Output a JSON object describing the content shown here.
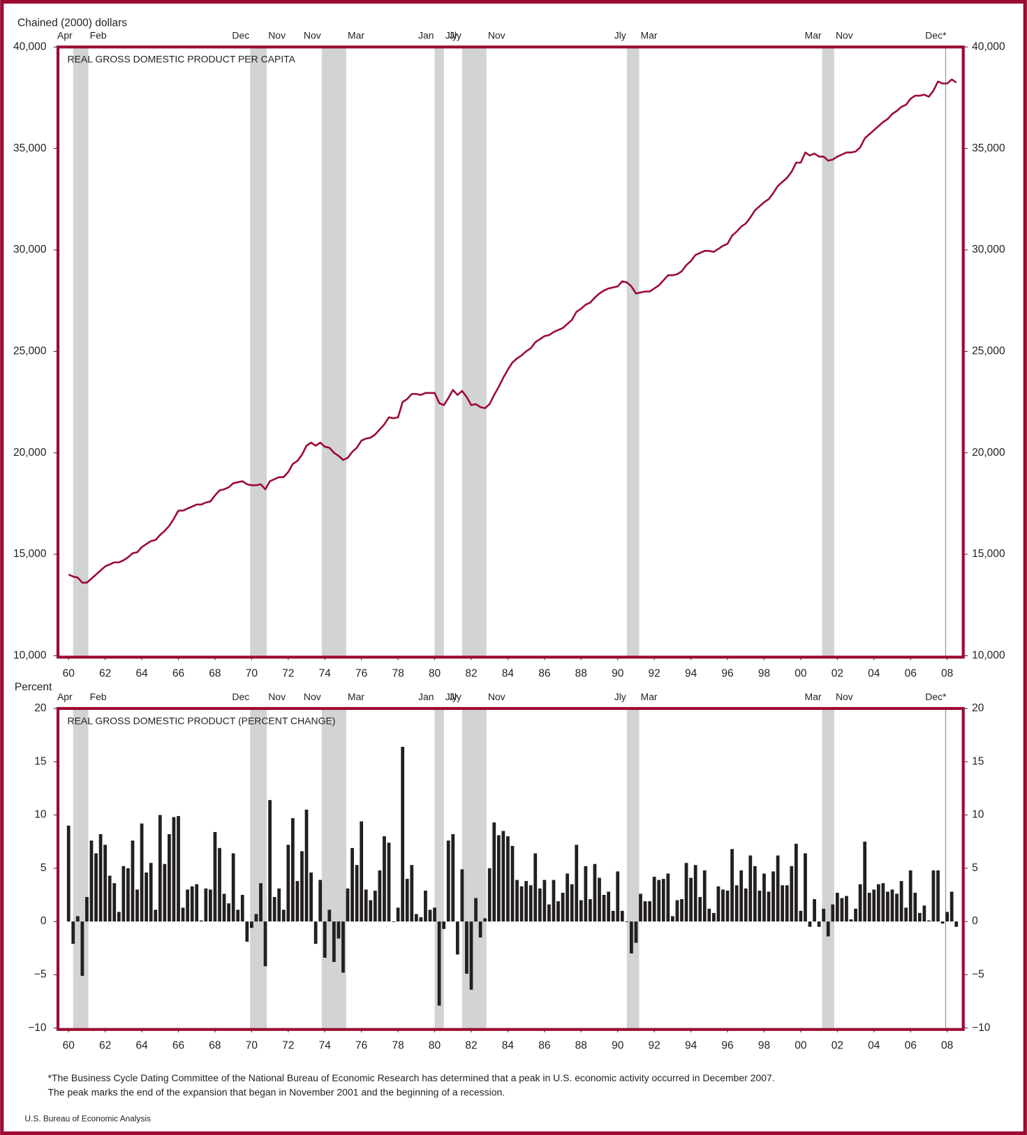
{
  "chart_data": [
    {
      "type": "line",
      "title": "REAL GROSS DOMESTIC PRODUCT PER CAPITA",
      "y_label": "Chained (2000) dollars",
      "color": "#9b0a32",
      "x": [
        1960,
        1960.25,
        1960.5,
        1960.75,
        1961,
        1961.25,
        1961.5,
        1961.75,
        1962,
        1962.25,
        1962.5,
        1962.75,
        1963,
        1963.25,
        1963.5,
        1963.75,
        1964,
        1964.25,
        1964.5,
        1964.75,
        1965,
        1965.25,
        1965.5,
        1965.75,
        1966,
        1966.25,
        1966.5,
        1966.75,
        1967,
        1967.25,
        1967.5,
        1967.75,
        1968,
        1968.25,
        1968.5,
        1968.75,
        1969,
        1969.25,
        1969.5,
        1969.75,
        1970,
        1970.25,
        1970.5,
        1970.75,
        1971,
        1971.25,
        1971.5,
        1971.75,
        1972,
        1972.25,
        1972.5,
        1972.75,
        1973,
        1973.25,
        1973.5,
        1973.75,
        1974,
        1974.25,
        1974.5,
        1974.75,
        1975,
        1975.25,
        1975.5,
        1975.75,
        1976,
        1976.25,
        1976.5,
        1976.75,
        1977,
        1977.25,
        1977.5,
        1977.75,
        1978,
        1978.25,
        1978.5,
        1978.75,
        1979,
        1979.25,
        1979.5,
        1979.75,
        1980,
        1980.25,
        1980.5,
        1980.75,
        1981,
        1981.25,
        1981.5,
        1981.75,
        1982,
        1982.25,
        1982.5,
        1982.75,
        1983,
        1983.25,
        1983.5,
        1983.75,
        1984,
        1984.25,
        1984.5,
        1984.75,
        1985,
        1985.25,
        1985.5,
        1985.75,
        1986,
        1986.25,
        1986.5,
        1986.75,
        1987,
        1987.25,
        1987.5,
        1987.75,
        1988,
        1988.25,
        1988.5,
        1988.75,
        1989,
        1989.25,
        1989.5,
        1989.75,
        1990,
        1990.25,
        1990.5,
        1990.75,
        1991,
        1991.25,
        1991.5,
        1991.75,
        1992,
        1992.25,
        1992.5,
        1992.75,
        1993,
        1993.25,
        1993.5,
        1993.75,
        1994,
        1994.25,
        1994.5,
        1994.75,
        1995,
        1995.25,
        1995.5,
        1995.75,
        1996,
        1996.25,
        1996.5,
        1996.75,
        1997,
        1997.25,
        1997.5,
        1997.75,
        1998,
        1998.25,
        1998.5,
        1998.75,
        1999,
        1999.25,
        1999.5,
        1999.75,
        2000,
        2000.25,
        2000.5,
        2000.75,
        2001,
        2001.25,
        2001.5,
        2001.75,
        2002,
        2002.25,
        2002.5,
        2002.75,
        2003,
        2003.25,
        2003.5,
        2003.75,
        2004,
        2004.25,
        2004.5,
        2004.75,
        2005,
        2005.25,
        2005.5,
        2005.75,
        2006,
        2006.25,
        2006.5,
        2006.75,
        2007,
        2007.25,
        2007.5,
        2007.75,
        2008,
        2008.25,
        2008.5
      ],
      "values": [
        14000,
        13900,
        13850,
        13600,
        13600,
        13800,
        14000,
        14200,
        14400,
        14500,
        14600,
        14600,
        14700,
        14850,
        15050,
        15100,
        15350,
        15500,
        15650,
        15700,
        15950,
        16150,
        16400,
        16750,
        17150,
        17150,
        17250,
        17350,
        17450,
        17450,
        17550,
        17600,
        17900,
        18150,
        18200,
        18300,
        18500,
        18550,
        18600,
        18450,
        18400,
        18400,
        18450,
        18200,
        18600,
        18700,
        18800,
        18800,
        19050,
        19450,
        19600,
        19900,
        20350,
        20500,
        20350,
        20500,
        20300,
        20250,
        20000,
        19850,
        19650,
        19750,
        20050,
        20250,
        20600,
        20700,
        20750,
        20900,
        21150,
        21400,
        21750,
        21700,
        21750,
        22500,
        22650,
        22900,
        22900,
        22850,
        22950,
        22950,
        22950,
        22450,
        22350,
        22700,
        23100,
        22850,
        23050,
        22750,
        22350,
        22400,
        22250,
        22200,
        22400,
        22850,
        23250,
        23700,
        24100,
        24450,
        24650,
        24800,
        25000,
        25150,
        25450,
        25600,
        25750,
        25800,
        25950,
        26050,
        26150,
        26350,
        26550,
        26950,
        27100,
        27300,
        27400,
        27650,
        27850,
        28000,
        28100,
        28150,
        28200,
        28450,
        28400,
        28200,
        27850,
        27900,
        27950,
        27950,
        28100,
        28250,
        28500,
        28750,
        28750,
        28800,
        28950,
        29250,
        29450,
        29750,
        29850,
        29950,
        29950,
        29900,
        30050,
        30200,
        30300,
        30700,
        30900,
        31150,
        31300,
        31600,
        31950,
        32150,
        32350,
        32500,
        32800,
        33150,
        33350,
        33550,
        33850,
        34300,
        34300,
        34800,
        34650,
        34750,
        34600,
        34600,
        34400,
        34450,
        34600,
        34700,
        34800,
        34800,
        34850,
        35050,
        35500,
        35700,
        35900,
        36100,
        36300,
        36450,
        36700,
        36850,
        37050,
        37150,
        37450,
        37600,
        37600,
        37650,
        37550,
        37850,
        38300,
        38200,
        38200,
        38400,
        38250
      ],
      "xlim": [
        1959.5,
        2008.8
      ],
      "xticks": [
        {
          "value": 1960,
          "label": "60"
        },
        {
          "value": 1962,
          "label": "62"
        },
        {
          "value": 1964,
          "label": "64"
        },
        {
          "value": 1966,
          "label": "66"
        },
        {
          "value": 1968,
          "label": "68"
        },
        {
          "value": 1970,
          "label": "70"
        },
        {
          "value": 1972,
          "label": "72"
        },
        {
          "value": 1974,
          "label": "74"
        },
        {
          "value": 1976,
          "label": "76"
        },
        {
          "value": 1978,
          "label": "78"
        },
        {
          "value": 1980,
          "label": "80"
        },
        {
          "value": 1982,
          "label": "82"
        },
        {
          "value": 1984,
          "label": "84"
        },
        {
          "value": 1986,
          "label": "86"
        },
        {
          "value": 1988,
          "label": "88"
        },
        {
          "value": 1990,
          "label": "90"
        },
        {
          "value": 1992,
          "label": "92"
        },
        {
          "value": 1994,
          "label": "94"
        },
        {
          "value": 1996,
          "label": "96"
        },
        {
          "value": 1998,
          "label": "98"
        },
        {
          "value": 2000,
          "label": "00"
        },
        {
          "value": 2002,
          "label": "02"
        },
        {
          "value": 2004,
          "label": "04"
        },
        {
          "value": 2006,
          "label": "06"
        },
        {
          "value": 2008,
          "label": "08"
        }
      ],
      "ylim": [
        10000,
        40000
      ],
      "yticks": [
        {
          "value": 10000,
          "label": "10,000"
        },
        {
          "value": 15000,
          "label": "15,000"
        },
        {
          "value": 20000,
          "label": "20,000"
        },
        {
          "value": 25000,
          "label": "25,000"
        },
        {
          "value": 30000,
          "label": "30,000"
        },
        {
          "value": 35000,
          "label": "35,000"
        },
        {
          "value": 40000,
          "label": "40,000"
        }
      ],
      "recessions": [
        {
          "start": 1960.25,
          "end": 1961.08,
          "start_label": "Apr",
          "end_label": "Feb"
        },
        {
          "start": 1969.92,
          "end": 1970.83,
          "start_label": "Dec",
          "end_label": "Nov"
        },
        {
          "start": 1973.83,
          "end": 1975.17,
          "start_label": "Nov",
          "end_label": "Mar"
        },
        {
          "start": 1980,
          "end": 1980.5,
          "start_label": "Jan",
          "end_label": "Jly"
        },
        {
          "start": 1981.5,
          "end": 1982.83,
          "start_label": "Jly",
          "end_label": "Nov"
        },
        {
          "start": 1990.5,
          "end": 1991.17,
          "start_label": "Jly",
          "end_label": "Mar"
        },
        {
          "start": 2001.17,
          "end": 2001.83,
          "start_label": "Mar",
          "end_label": "Nov"
        },
        {
          "start": 2007.92,
          "start_label": "Dec*"
        }
      ]
    },
    {
      "type": "bar",
      "title": "REAL GROSS DOMESTIC PRODUCT (PERCENT CHANGE)",
      "y_label": "Percent",
      "color": "#231f20",
      "x": [
        1960,
        1960.25,
        1960.5,
        1960.75,
        1961,
        1961.25,
        1961.5,
        1961.75,
        1962,
        1962.25,
        1962.5,
        1962.75,
        1963,
        1963.25,
        1963.5,
        1963.75,
        1964,
        1964.25,
        1964.5,
        1964.75,
        1965,
        1965.25,
        1965.5,
        1965.75,
        1966,
        1966.25,
        1966.5,
        1966.75,
        1967,
        1967.25,
        1967.5,
        1967.75,
        1968,
        1968.25,
        1968.5,
        1968.75,
        1969,
        1969.25,
        1969.5,
        1969.75,
        1970,
        1970.25,
        1970.5,
        1970.75,
        1971,
        1971.25,
        1971.5,
        1971.75,
        1972,
        1972.25,
        1972.5,
        1972.75,
        1973,
        1973.25,
        1973.5,
        1973.75,
        1974,
        1974.25,
        1974.5,
        1974.75,
        1975,
        1975.25,
        1975.5,
        1975.75,
        1976,
        1976.25,
        1976.5,
        1976.75,
        1977,
        1977.25,
        1977.5,
        1977.75,
        1978,
        1978.25,
        1978.5,
        1978.75,
        1979,
        1979.25,
        1979.5,
        1979.75,
        1980,
        1980.25,
        1980.5,
        1980.75,
        1981,
        1981.25,
        1981.5,
        1981.75,
        1982,
        1982.25,
        1982.5,
        1982.75,
        1983,
        1983.25,
        1983.5,
        1983.75,
        1984,
        1984.25,
        1984.5,
        1984.75,
        1985,
        1985.25,
        1985.5,
        1985.75,
        1986,
        1986.25,
        1986.5,
        1986.75,
        1987,
        1987.25,
        1987.5,
        1987.75,
        1988,
        1988.25,
        1988.5,
        1988.75,
        1989,
        1989.25,
        1989.5,
        1989.75,
        1990,
        1990.25,
        1990.5,
        1990.75,
        1991,
        1991.25,
        1991.5,
        1991.75,
        1992,
        1992.25,
        1992.5,
        1992.75,
        1993,
        1993.25,
        1993.5,
        1993.75,
        1994,
        1994.25,
        1994.5,
        1994.75,
        1995,
        1995.25,
        1995.5,
        1995.75,
        1996,
        1996.25,
        1996.5,
        1996.75,
        1997,
        1997.25,
        1997.5,
        1997.75,
        1998,
        1998.25,
        1998.5,
        1998.75,
        1999,
        1999.25,
        1999.5,
        1999.75,
        2000,
        2000.25,
        2000.5,
        2000.75,
        2001,
        2001.25,
        2001.5,
        2001.75,
        2002,
        2002.25,
        2002.5,
        2002.75,
        2003,
        2003.25,
        2003.5,
        2003.75,
        2004,
        2004.25,
        2004.5,
        2004.75,
        2005,
        2005.25,
        2005.5,
        2005.75,
        2006,
        2006.25,
        2006.5,
        2006.75,
        2007,
        2007.25,
        2007.5,
        2007.75,
        2008,
        2008.25,
        2008.5
      ],
      "values": [
        9.0,
        -2.1,
        0.5,
        -5.1,
        2.3,
        7.6,
        6.4,
        8.2,
        7.2,
        4.3,
        3.6,
        0.9,
        5.2,
        5.0,
        7.6,
        3.0,
        9.2,
        4.6,
        5.5,
        1.1,
        10.0,
        5.4,
        8.2,
        9.8,
        9.9,
        1.3,
        3.0,
        3.3,
        3.5,
        0.1,
        3.1,
        3.0,
        8.4,
        6.9,
        2.6,
        1.7,
        6.4,
        1.1,
        2.5,
        -1.9,
        -0.6,
        0.7,
        3.6,
        -4.2,
        11.4,
        2.3,
        3.1,
        1.1,
        7.2,
        9.7,
        3.8,
        6.6,
        10.5,
        4.6,
        -2.1,
        3.9,
        -3.4,
        1.1,
        -3.8,
        -1.6,
        -4.8,
        3.1,
        6.9,
        5.3,
        9.4,
        3.0,
        2.0,
        2.9,
        4.8,
        8.0,
        7.4,
        0.0,
        1.3,
        16.4,
        4.0,
        5.3,
        0.7,
        0.4,
        2.9,
        1.1,
        1.3,
        -7.9,
        -0.7,
        7.6,
        8.2,
        -3.1,
        4.9,
        -4.9,
        -6.4,
        2.2,
        -1.5,
        0.3,
        5.0,
        9.3,
        8.1,
        8.5,
        8.0,
        7.1,
        3.9,
        3.3,
        3.8,
        3.4,
        6.4,
        3.1,
        3.9,
        1.6,
        3.9,
        1.9,
        2.7,
        4.5,
        3.5,
        7.2,
        2.0,
        5.2,
        2.1,
        5.4,
        4.1,
        2.5,
        2.8,
        1.0,
        4.7,
        1.0,
        0.0,
        -3.0,
        -2.0,
        2.6,
        1.9,
        1.9,
        4.2,
        3.9,
        4.0,
        4.5,
        0.5,
        2.0,
        2.1,
        5.5,
        4.1,
        5.3,
        2.3,
        4.8,
        1.2,
        0.8,
        3.3,
        3.0,
        2.9,
        6.8,
        3.4,
        4.8,
        3.1,
        6.2,
        5.2,
        2.9,
        4.5,
        2.8,
        4.7,
        6.2,
        3.4,
        3.4,
        5.2,
        7.3,
        1.0,
        6.4,
        -0.5,
        2.1,
        -0.5,
        1.2,
        -1.4,
        1.6,
        2.7,
        2.2,
        2.4,
        0.2,
        1.2,
        3.5,
        7.5,
        2.7,
        3.0,
        3.5,
        3.6,
        2.8,
        3.0,
        2.6,
        3.8,
        1.3,
        4.8,
        2.7,
        0.8,
        1.5,
        0.1,
        4.8,
        4.8,
        -0.2,
        0.9,
        2.8,
        -0.5
      ],
      "xlim": [
        1959.5,
        2008.8
      ],
      "xticks": [
        {
          "value": 1960,
          "label": "60"
        },
        {
          "value": 1962,
          "label": "62"
        },
        {
          "value": 1964,
          "label": "64"
        },
        {
          "value": 1966,
          "label": "66"
        },
        {
          "value": 1968,
          "label": "68"
        },
        {
          "value": 1970,
          "label": "70"
        },
        {
          "value": 1972,
          "label": "72"
        },
        {
          "value": 1974,
          "label": "74"
        },
        {
          "value": 1976,
          "label": "76"
        },
        {
          "value": 1978,
          "label": "78"
        },
        {
          "value": 1980,
          "label": "80"
        },
        {
          "value": 1982,
          "label": "82"
        },
        {
          "value": 1984,
          "label": "84"
        },
        {
          "value": 1986,
          "label": "86"
        },
        {
          "value": 1988,
          "label": "88"
        },
        {
          "value": 1990,
          "label": "90"
        },
        {
          "value": 1992,
          "label": "92"
        },
        {
          "value": 1994,
          "label": "94"
        },
        {
          "value": 1996,
          "label": "96"
        },
        {
          "value": 1998,
          "label": "98"
        },
        {
          "value": 2000,
          "label": "00"
        },
        {
          "value": 2002,
          "label": "02"
        },
        {
          "value": 2004,
          "label": "04"
        },
        {
          "value": 2006,
          "label": "06"
        },
        {
          "value": 2008,
          "label": "08"
        }
      ],
      "ylim": [
        -10,
        20
      ],
      "yticks": [
        {
          "value": -10,
          "label": "−10"
        },
        {
          "value": -5,
          "label": "−5"
        },
        0,
        5,
        10,
        15,
        20
      ],
      "recessions": [
        {
          "start": 1960.25,
          "end": 1961.08,
          "start_label": "Apr",
          "end_label": "Feb"
        },
        {
          "start": 1969.92,
          "end": 1970.83,
          "start_label": "Dec",
          "end_label": "Nov"
        },
        {
          "start": 1973.83,
          "end": 1975.17,
          "start_label": "Nov",
          "end_label": "Mar"
        },
        {
          "start": 1980,
          "end": 1980.5,
          "start_label": "Jan",
          "end_label": "Jly"
        },
        {
          "start": 1981.5,
          "end": 1982.83,
          "start_label": "Jly",
          "end_label": "Nov"
        },
        {
          "start": 1990.5,
          "end": 1991.17,
          "start_label": "Jly",
          "end_label": "Mar"
        },
        {
          "start": 2001.17,
          "end": 2001.83,
          "start_label": "Mar",
          "end_label": "Nov"
        },
        {
          "start": 2007.92,
          "start_label": "Dec*"
        }
      ]
    }
  ],
  "footnote": [
    "*The Business Cycle Dating Committee of the National Bureau of Economic Research has determined that a peak in U.S. economic activity occurred in December 2007.",
    "The peak marks the end of the expansion that began in November 2001 and the beginning of a recession."
  ],
  "source": "U.S. Bureau of Economic Analysis"
}
